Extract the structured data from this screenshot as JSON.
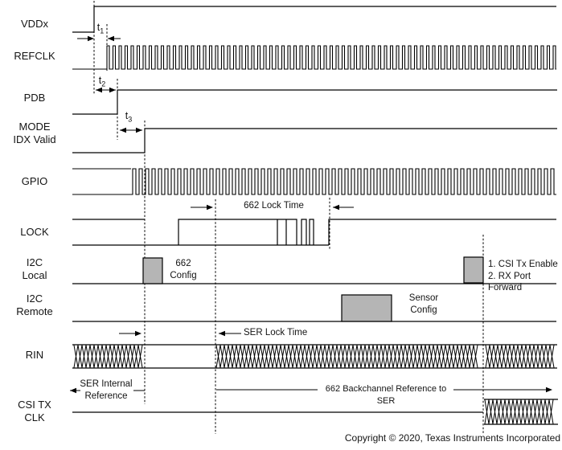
{
  "signals": [
    {
      "lines": [
        "VDDx",
        ""
      ]
    },
    {
      "lines": [
        "REFCLK",
        ""
      ]
    },
    {
      "lines": [
        "PDB",
        ""
      ]
    },
    {
      "lines": [
        "MODE",
        "IDX Valid"
      ]
    },
    {
      "lines": [
        "GPIO",
        ""
      ]
    },
    {
      "lines": [
        "LOCK",
        ""
      ]
    },
    {
      "lines": [
        "I2C",
        "Local"
      ]
    },
    {
      "lines": [
        "I2C",
        "Remote"
      ]
    },
    {
      "lines": [
        "RIN",
        ""
      ]
    },
    {
      "lines": [
        "CSI TX",
        "CLK"
      ]
    }
  ],
  "timing": {
    "t1": {
      "base": "t",
      "sub": "1"
    },
    "t2": {
      "base": "t",
      "sub": "2"
    },
    "t3": {
      "base": "t",
      "sub": "3"
    }
  },
  "notes": {
    "lock_time": "662 Lock Time",
    "config_662": [
      "662",
      "Config"
    ],
    "csi_note": [
      "1. CSI Tx Enable",
      "2. RX Port Forward"
    ],
    "sensor_config": [
      "Sensor",
      "Config"
    ],
    "ser_lock_time": "SER Lock Time",
    "ser_internal": [
      "SER Internal",
      "Reference"
    ],
    "backchannel": "662 Backchannel Reference to SER"
  },
  "footer": {
    "copyright": "Copyright © 2020, Texas Instruments Incorporated"
  },
  "colors": {
    "line": "#000000",
    "box_fill": "#b5b5b5",
    "text": "#141414"
  }
}
